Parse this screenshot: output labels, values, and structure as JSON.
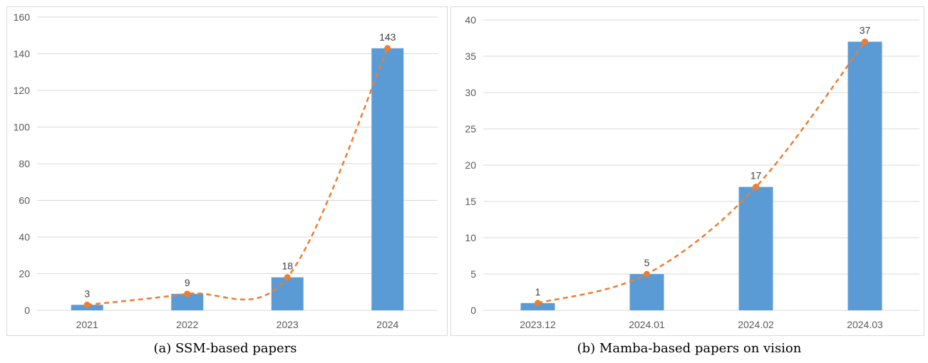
{
  "colors": {
    "bar": "#5B9BD5",
    "line": "#ED7D31",
    "grid": "#D9D9D9",
    "frame": "#D9D9D9",
    "tick_text": "#595959"
  },
  "chart_data": [
    {
      "type": "bar",
      "caption": "(a) SSM-based papers",
      "categories": [
        "2021",
        "2022",
        "2023",
        "2024"
      ],
      "values": [
        3,
        9,
        18,
        143
      ],
      "data_labels": [
        "3",
        "9",
        "18",
        "143"
      ],
      "overlay_line": "dashed line with markers through bar tops",
      "ylim": [
        0,
        160
      ],
      "yticks": [
        0,
        20,
        40,
        60,
        80,
        100,
        120,
        140,
        160
      ],
      "grid": true,
      "title": "",
      "xlabel": "",
      "ylabel": ""
    },
    {
      "type": "bar",
      "caption": "(b) Mamba-based papers on vision",
      "categories": [
        "2023.12",
        "2024.01",
        "2024.02",
        "2024.03"
      ],
      "values": [
        1,
        5,
        17,
        37
      ],
      "data_labels": [
        "1",
        "5",
        "17",
        "37"
      ],
      "overlay_line": "dashed line with markers through bar tops",
      "ylim": [
        0,
        40
      ],
      "yticks": [
        0,
        5,
        10,
        15,
        20,
        25,
        30,
        35,
        40
      ],
      "grid": true,
      "title": "",
      "xlabel": "",
      "ylabel": ""
    }
  ]
}
